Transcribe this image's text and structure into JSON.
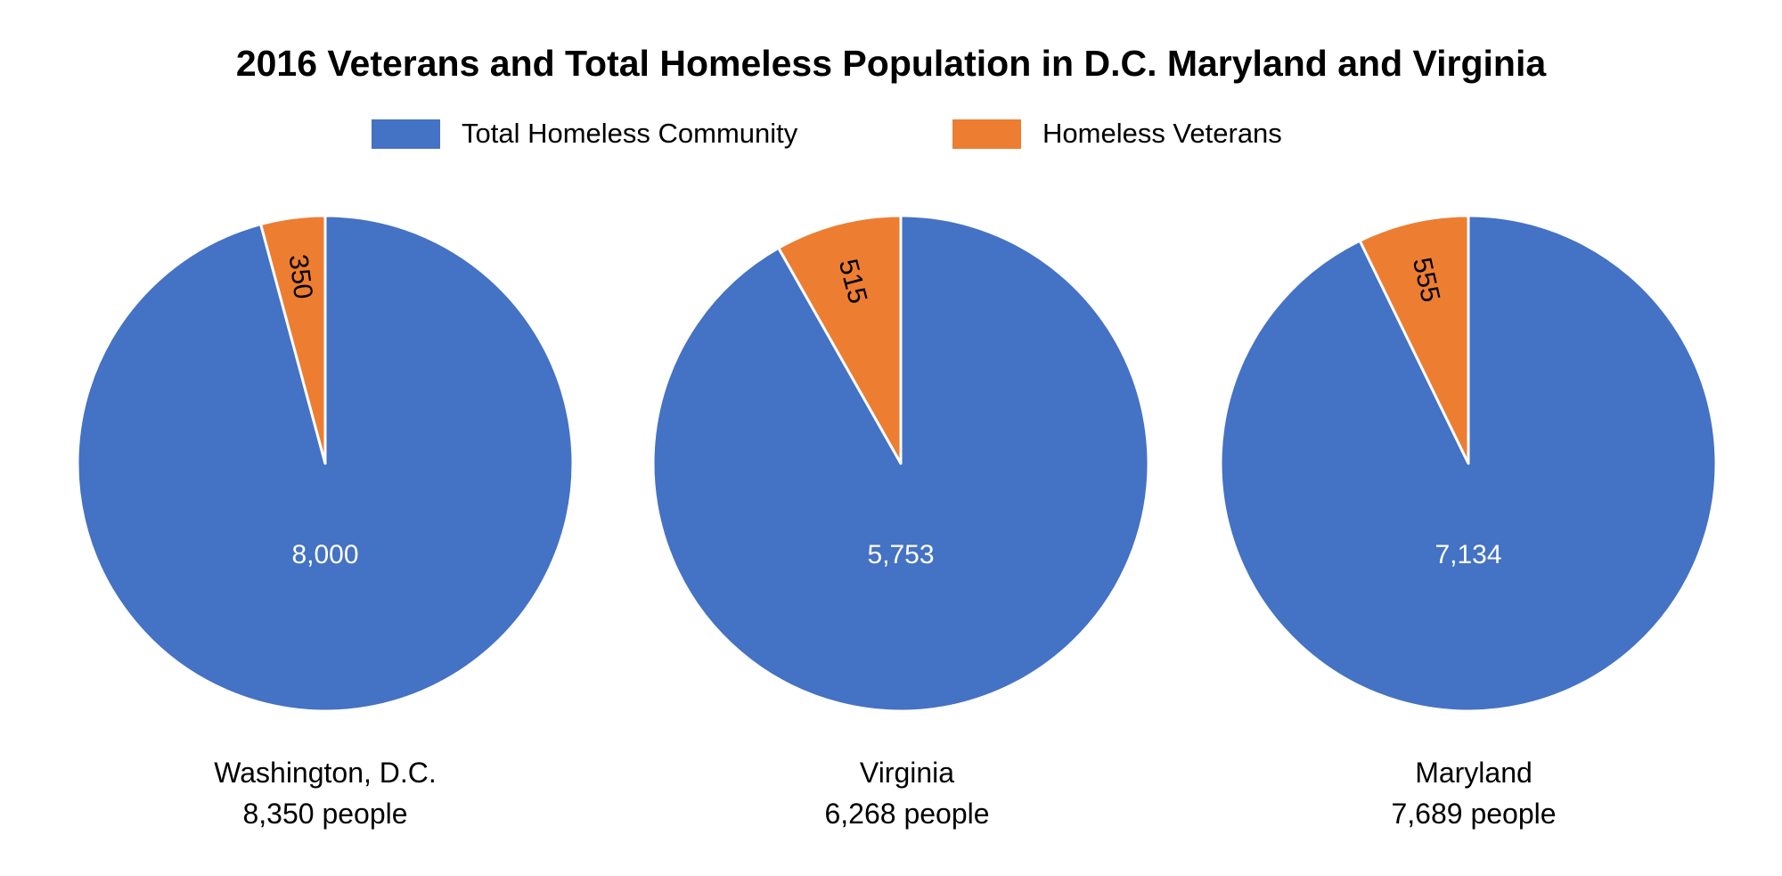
{
  "chart_data": {
    "type": "pie",
    "title": "2016 Veterans and Total Homeless Population in D.C. Maryland and Virginia",
    "legend": {
      "placement": "top",
      "entries": [
        "Total Homeless Community",
        "Homeless Veterans"
      ]
    },
    "colors": {
      "Total Homeless Community": "#4472C4",
      "Homeless Veterans": "#ED7D31"
    },
    "pies": [
      {
        "name": "Washington, D.C.",
        "total_label": "8,350 people",
        "slices": [
          {
            "label": "Total Homeless Community",
            "value": 8000,
            "display": "8,000"
          },
          {
            "label": "Homeless Veterans",
            "value": 350,
            "display": "350"
          }
        ]
      },
      {
        "name": "Virginia",
        "total_label": "6,268 people",
        "slices": [
          {
            "label": "Total Homeless Community",
            "value": 5753,
            "display": "5,753"
          },
          {
            "label": "Homeless Veterans",
            "value": 515,
            "display": "515"
          }
        ]
      },
      {
        "name": "Maryland",
        "total_label": "7,689 people",
        "slices": [
          {
            "label": "Total Homeless Community",
            "value": 7134,
            "display": "7,134"
          },
          {
            "label": "Homeless Veterans",
            "value": 555,
            "display": "555"
          }
        ]
      }
    ]
  }
}
